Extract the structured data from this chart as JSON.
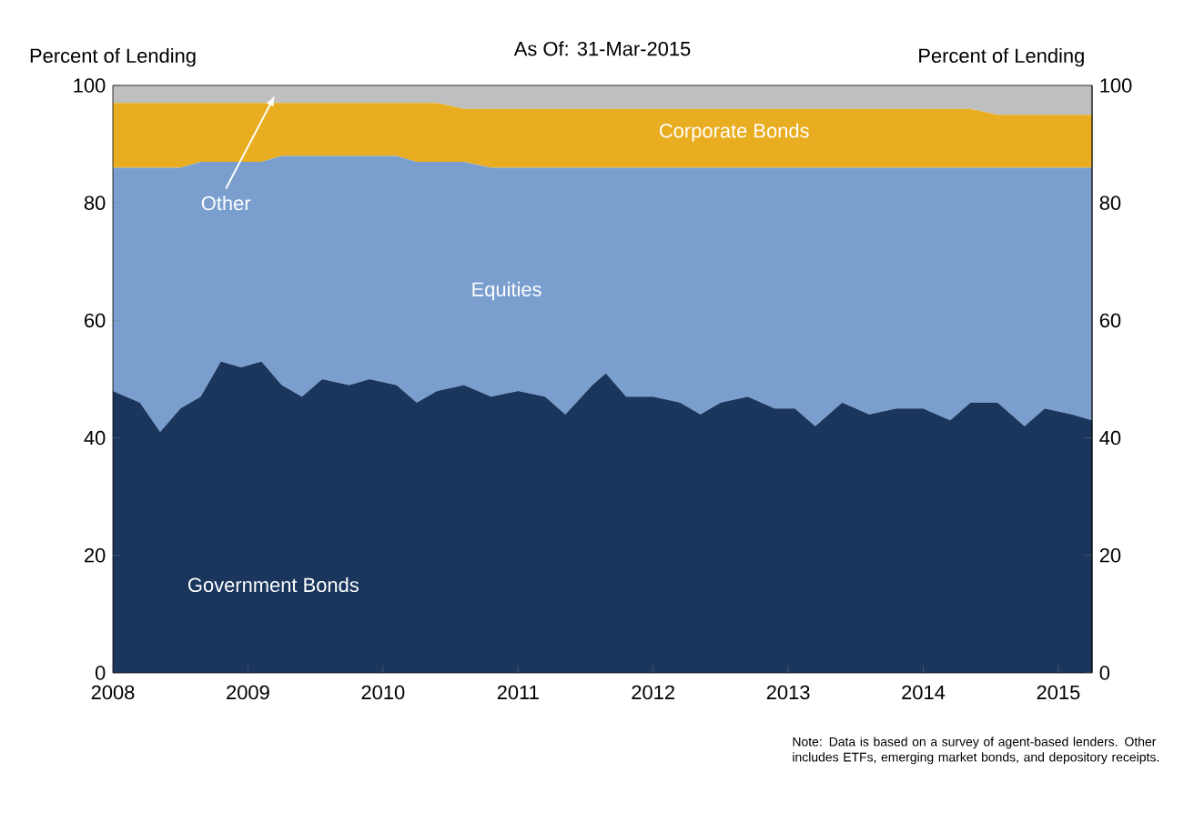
{
  "chart_data": {
    "type": "area",
    "stacked": true,
    "title": "As Of: 31-Mar-2015",
    "ylabel": "Percent of Lending",
    "y2label": "Percent of Lending",
    "x": [
      2008.0,
      2008.2,
      2008.35,
      2008.5,
      2008.65,
      2008.8,
      2008.95,
      2009.1,
      2009.25,
      2009.4,
      2009.55,
      2009.75,
      2009.9,
      2010.1,
      2010.25,
      2010.4,
      2010.6,
      2010.8,
      2011.0,
      2011.2,
      2011.35,
      2011.55,
      2011.65,
      2011.8,
      2012.0,
      2012.2,
      2012.35,
      2012.5,
      2012.7,
      2012.9,
      2013.05,
      2013.2,
      2013.4,
      2013.6,
      2013.8,
      2014.0,
      2014.2,
      2014.35,
      2014.55,
      2014.75,
      2014.9,
      2015.1,
      2015.25
    ],
    "series": [
      {
        "name": "Government Bonds",
        "color": "#1b365d",
        "values": [
          48,
          46,
          41,
          45,
          47,
          53,
          52,
          53,
          49,
          47,
          50,
          49,
          50,
          49,
          46,
          48,
          49,
          47,
          48,
          47,
          44,
          49,
          51,
          47,
          47,
          46,
          44,
          46,
          47,
          45,
          45,
          42,
          46,
          44,
          45,
          45,
          43,
          46,
          46,
          42,
          45,
          44,
          43
        ]
      },
      {
        "name": "Equities",
        "color": "#7a9fcf",
        "values": [
          38,
          40,
          45,
          41,
          40,
          34,
          35,
          34,
          39,
          41,
          38,
          39,
          38,
          39,
          41,
          39,
          38,
          39,
          38,
          39,
          42,
          37,
          35,
          39,
          39,
          40,
          42,
          40,
          39,
          41,
          41,
          44,
          40,
          42,
          41,
          41,
          43,
          40,
          40,
          44,
          41,
          42,
          43
        ]
      },
      {
        "name": "Corporate Bonds",
        "color": "#e8ad20",
        "values": [
          11,
          11,
          11,
          11,
          10,
          10,
          10,
          10,
          9,
          9,
          9,
          9,
          9,
          9,
          10,
          10,
          9,
          10,
          10,
          10,
          10,
          10,
          10,
          10,
          10,
          10,
          10,
          10,
          10,
          10,
          10,
          10,
          10,
          10,
          10,
          10,
          10,
          10,
          9,
          9,
          9,
          9,
          9
        ]
      },
      {
        "name": "Other",
        "color": "#bfbfbf",
        "values": [
          3,
          3,
          3,
          3,
          3,
          3,
          3,
          3,
          3,
          3,
          3,
          3,
          3,
          3,
          3,
          3,
          4,
          4,
          4,
          4,
          4,
          4,
          4,
          4,
          4,
          4,
          4,
          4,
          4,
          4,
          4,
          4,
          4,
          4,
          4,
          4,
          4,
          4,
          5,
          5,
          5,
          5,
          5
        ]
      }
    ],
    "xlim": [
      2008,
      2015.25
    ],
    "xticks": [
      2008,
      2009,
      2010,
      2011,
      2012,
      2013,
      2014,
      2015
    ],
    "ylim": [
      0,
      100
    ],
    "yticks": [
      0,
      20,
      40,
      60,
      80,
      100
    ],
    "y2lim": [
      0,
      100
    ],
    "y2ticks": [
      0,
      20,
      40,
      60,
      80,
      100
    ],
    "grid": false,
    "legend": false,
    "annotations": [
      "Note: Data is based on a survey of agent-based lenders. Other includes ETFs, emerging market bonds, and depository receipts."
    ]
  }
}
